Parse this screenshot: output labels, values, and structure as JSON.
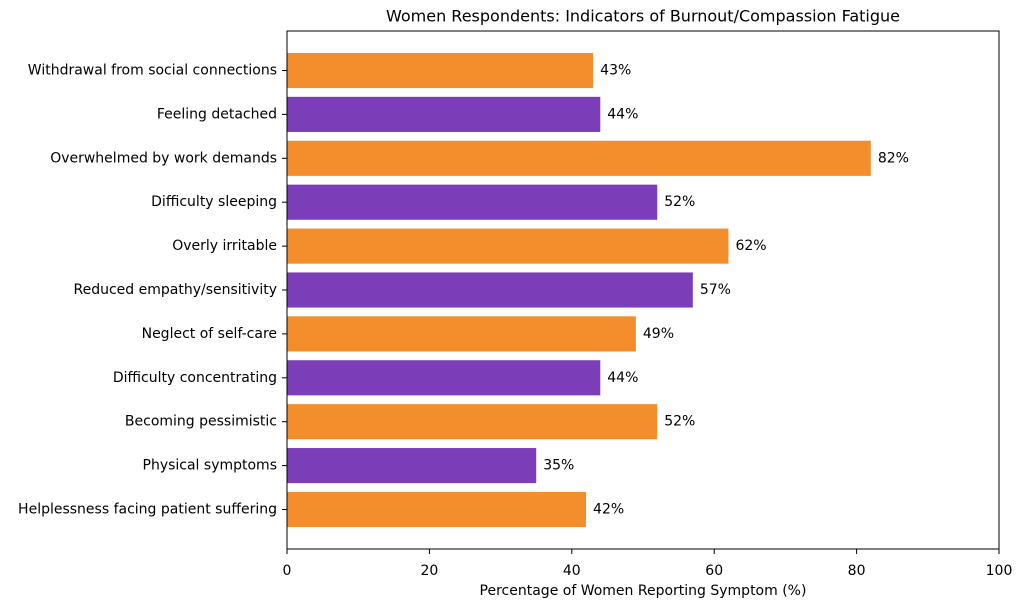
{
  "chart_data": {
    "type": "barh",
    "title": "Women Respondents: Indicators of Burnout/Compassion Fatigue",
    "x_label": "Percentage of Women Reporting Symptom (%)",
    "categories": [
      "Withdrawal from social connections",
      "Feeling detached",
      "Overwhelmed by work demands",
      "Difficulty sleeping",
      "Overly irritable",
      "Reduced empathy/sensitivity",
      "Neglect of self-care",
      "Difficulty concentrating",
      "Becoming pessimistic",
      "Physical symptoms",
      "Helplessness facing patient suffering"
    ],
    "values": [
      43,
      44,
      82,
      52,
      62,
      57,
      49,
      44,
      52,
      35,
      42
    ],
    "value_labels": [
      "43%",
      "44%",
      "82%",
      "52%",
      "62%",
      "57%",
      "49%",
      "44%",
      "52%",
      "35%",
      "42%"
    ],
    "colors": [
      "#f28e2b",
      "#7b3db8",
      "#f28e2b",
      "#7b3db8",
      "#f28e2b",
      "#7b3db8",
      "#f28e2b",
      "#7b3db8",
      "#f28e2b",
      "#7b3db8",
      "#f28e2b"
    ],
    "xlim": [
      0,
      100
    ],
    "xticks": [
      0,
      20,
      40,
      60,
      80,
      100
    ]
  }
}
